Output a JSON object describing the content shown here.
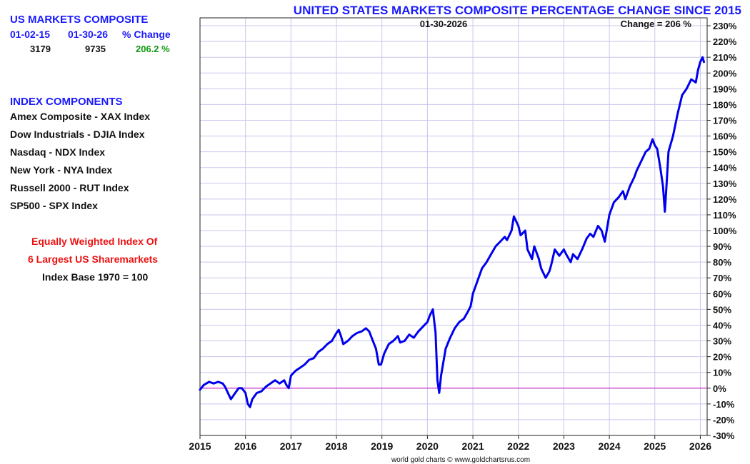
{
  "sidebar": {
    "composite_title": "US MARKETS COMPOSITE",
    "col_headers": [
      "01-02-15",
      "01-30-26",
      "% Change"
    ],
    "values": [
      "3179",
      "9735",
      "206.2 %"
    ],
    "components_title": "INDEX COMPONENTS",
    "components": [
      "Amex Composite - XAX Index",
      "Dow Industrials - DJIA Index",
      "Nasdaq - NDX Index",
      "New York - NYA Index",
      "Russell 2000 - RUT Index",
      "SP500 - SPX Index"
    ],
    "note_line1": "Equally Weighted Index Of",
    "note_line2": "6 Largest US Sharemarkets",
    "note_line3": "Index Base 1970 = 100"
  },
  "colors": {
    "title": "#1a1aff",
    "series": "#0000ee",
    "zero_line": "#cc33cc",
    "grid": "#c8c8ee",
    "positive": "#119911",
    "note": "#ee1111"
  },
  "chart_data": {
    "type": "line",
    "title": "UNITED STATES MARKETS COMPOSITE PERCENTAGE CHANGE SINCE 2015",
    "date_label": "01-30-2026",
    "change_label": "Change = 206 %",
    "credit": "world gold charts © www.goldchartsrus.com",
    "xlim": [
      2015.0,
      2026.15
    ],
    "ylim": [
      -30,
      235
    ],
    "x_ticks": [
      2015,
      2016,
      2017,
      2018,
      2019,
      2020,
      2021,
      2022,
      2023,
      2024,
      2025,
      2026
    ],
    "y_ticks": [
      -30,
      -20,
      -10,
      0,
      10,
      20,
      30,
      40,
      50,
      60,
      70,
      80,
      90,
      100,
      110,
      120,
      130,
      140,
      150,
      160,
      170,
      180,
      190,
      200,
      210,
      220,
      230
    ],
    "grid": true,
    "reference_line": 0,
    "series": [
      {
        "x": [
          2015.0,
          2015.08,
          2015.2,
          2015.3,
          2015.4,
          2015.5,
          2015.55,
          2015.63,
          2015.68,
          2015.75,
          2015.85,
          2015.92,
          2016.0,
          2016.05,
          2016.1,
          2016.15,
          2016.25,
          2016.35,
          2016.45,
          2016.55,
          2016.65,
          2016.75,
          2016.85,
          2016.9,
          2016.95,
          2017.0,
          2017.1,
          2017.2,
          2017.3,
          2017.4,
          2017.5,
          2017.6,
          2017.7,
          2017.8,
          2017.9,
          2018.0,
          2018.05,
          2018.1,
          2018.15,
          2018.25,
          2018.35,
          2018.45,
          2018.55,
          2018.65,
          2018.72,
          2018.8,
          2018.87,
          2018.93,
          2018.98,
          2019.05,
          2019.15,
          2019.25,
          2019.35,
          2019.4,
          2019.5,
          2019.6,
          2019.7,
          2019.8,
          2019.9,
          2020.0,
          2020.05,
          2020.12,
          2020.18,
          2020.22,
          2020.26,
          2020.3,
          2020.4,
          2020.5,
          2020.6,
          2020.7,
          2020.8,
          2020.88,
          2020.95,
          2021.0,
          2021.1,
          2021.2,
          2021.3,
          2021.4,
          2021.5,
          2021.6,
          2021.7,
          2021.75,
          2021.85,
          2021.9,
          2022.0,
          2022.05,
          2022.15,
          2022.2,
          2022.3,
          2022.35,
          2022.45,
          2022.5,
          2022.6,
          2022.68,
          2022.72,
          2022.8,
          2022.9,
          2023.0,
          2023.05,
          2023.15,
          2023.2,
          2023.3,
          2023.4,
          2023.5,
          2023.58,
          2023.65,
          2023.75,
          2023.83,
          2023.9,
          2024.0,
          2024.1,
          2024.2,
          2024.3,
          2024.35,
          2024.45,
          2024.55,
          2024.6,
          2024.7,
          2024.8,
          2024.88,
          2024.95,
          2025.0,
          2025.05,
          2025.12,
          2025.18,
          2025.22,
          2025.26,
          2025.3,
          2025.4,
          2025.5,
          2025.6,
          2025.7,
          2025.8,
          2025.9,
          2025.95,
          2026.0,
          2026.05,
          2026.08
        ],
        "y": [
          -1,
          2,
          4,
          3,
          4,
          3,
          1,
          -4,
          -7,
          -4,
          0,
          0,
          -3,
          -10,
          -12,
          -7,
          -3,
          -2,
          1,
          3,
          5,
          3,
          5,
          2,
          0,
          8,
          11,
          13,
          15,
          18,
          19,
          23,
          25,
          28,
          30,
          35,
          37,
          33,
          28,
          30,
          33,
          35,
          36,
          38,
          36,
          30,
          25,
          15,
          15,
          22,
          28,
          30,
          33,
          29,
          30,
          34,
          32,
          36,
          39,
          42,
          46,
          50,
          35,
          5,
          -3,
          8,
          25,
          32,
          38,
          42,
          44,
          48,
          52,
          60,
          68,
          76,
          80,
          85,
          90,
          93,
          96,
          94,
          100,
          109,
          103,
          97,
          100,
          88,
          82,
          90,
          82,
          76,
          70,
          74,
          78,
          88,
          84,
          88,
          85,
          80,
          85,
          82,
          88,
          95,
          98,
          96,
          103,
          100,
          93,
          110,
          118,
          121,
          125,
          120,
          128,
          134,
          138,
          144,
          150,
          152,
          158,
          154,
          152,
          140,
          128,
          112,
          130,
          150,
          160,
          174,
          186,
          190,
          196,
          194,
          202,
          207,
          210,
          207
        ]
      }
    ]
  }
}
